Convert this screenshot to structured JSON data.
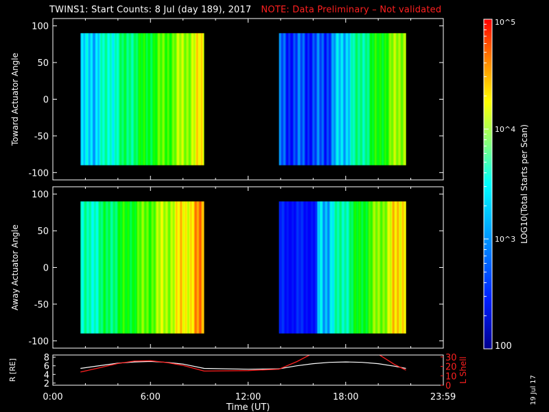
{
  "title": {
    "main": "TWINS1: Start Counts:  8 Jul (day 189), 2017",
    "note": "NOTE: Data Preliminary – Not validated"
  },
  "date_stamp": "19 Jul 17",
  "chart_data": [
    {
      "type": "heatmap",
      "panel": "top",
      "ylabel": "Toward Actuator Angle",
      "ylim": [
        -110,
        110
      ],
      "yticks": [
        100,
        50,
        0,
        -50,
        -100
      ],
      "xlim_hours": [
        0,
        24
      ],
      "data_blocks": [
        {
          "start_hour": 1.7,
          "end_hour": 9.3
        },
        {
          "start_hour": 13.9,
          "end_hour": 21.7
        }
      ],
      "angle_range": [
        -90,
        90
      ],
      "colorscale": "rainbow",
      "cbar_label": "LOG10(Total Starts per Scan)"
    },
    {
      "type": "heatmap",
      "panel": "middle",
      "ylabel": "Away Actuator Angle",
      "ylim": [
        -110,
        110
      ],
      "yticks": [
        100,
        50,
        0,
        -50,
        -100
      ],
      "xlim_hours": [
        0,
        24
      ],
      "data_blocks": [
        {
          "start_hour": 1.7,
          "end_hour": 9.3
        },
        {
          "start_hour": 13.9,
          "end_hour": 21.7
        }
      ],
      "angle_range": [
        -90,
        90
      ],
      "colorscale": "rainbow"
    },
    {
      "type": "line",
      "panel": "bottom",
      "ylabel_left": "R [RE]",
      "ylabel_right": "L Shell",
      "yticks_left": [
        2,
        4,
        6,
        8
      ],
      "yticks_right": [
        0,
        10,
        20,
        30
      ],
      "ylim_left": [
        1.5,
        8.5
      ],
      "ylim_right": [
        0,
        32
      ],
      "series": [
        {
          "name": "R",
          "color": "#ffffff",
          "x": [
            1.7,
            3,
            4,
            5,
            6,
            7,
            8,
            9.3,
            12,
            13.9,
            15,
            16,
            17,
            18,
            19,
            20,
            21,
            21.7
          ],
          "y": [
            5.4,
            6.1,
            6.6,
            6.9,
            7.0,
            6.8,
            6.4,
            5.4,
            5.2,
            5.3,
            6.0,
            6.5,
            6.8,
            6.9,
            6.8,
            6.5,
            5.9,
            5.4
          ]
        },
        {
          "name": "L Shell",
          "color": "#ff2020",
          "segments": [
            {
              "x": [
                1.7,
                3,
                4,
                5,
                6,
                7,
                8,
                9.3
              ],
              "y": [
                14,
                19,
                23,
                25.5,
                26,
                24,
                21,
                15
              ]
            },
            {
              "x": [
                9.3,
                12,
                13.9,
                15,
                16.0
              ],
              "y": [
                15,
                15.5,
                17,
                25,
                34
              ]
            },
            {
              "x": [
                19.9,
                21,
                21.7
              ],
              "y": [
                34,
                22,
                16
              ]
            }
          ]
        }
      ]
    }
  ],
  "xaxis": {
    "ticks": [
      {
        "hour": 0,
        "label": "0:00"
      },
      {
        "hour": 6,
        "label": "6:00"
      },
      {
        "hour": 12,
        "label": "12:00"
      },
      {
        "hour": 18,
        "label": "18:00"
      },
      {
        "hour": 23.983,
        "label": "23:59"
      }
    ],
    "label": "Time (UT)"
  },
  "colorbar": {
    "tick_labels": [
      "10^5",
      "10^4",
      "10^3",
      "100"
    ],
    "tick_values": [
      100000,
      10000,
      1000,
      100
    ],
    "label": "LOG10(Total Starts per Scan)",
    "colors": [
      "#ff0000",
      "#ff8000",
      "#ffff00",
      "#00ffff",
      "#0040ff",
      "#0000a0"
    ]
  }
}
